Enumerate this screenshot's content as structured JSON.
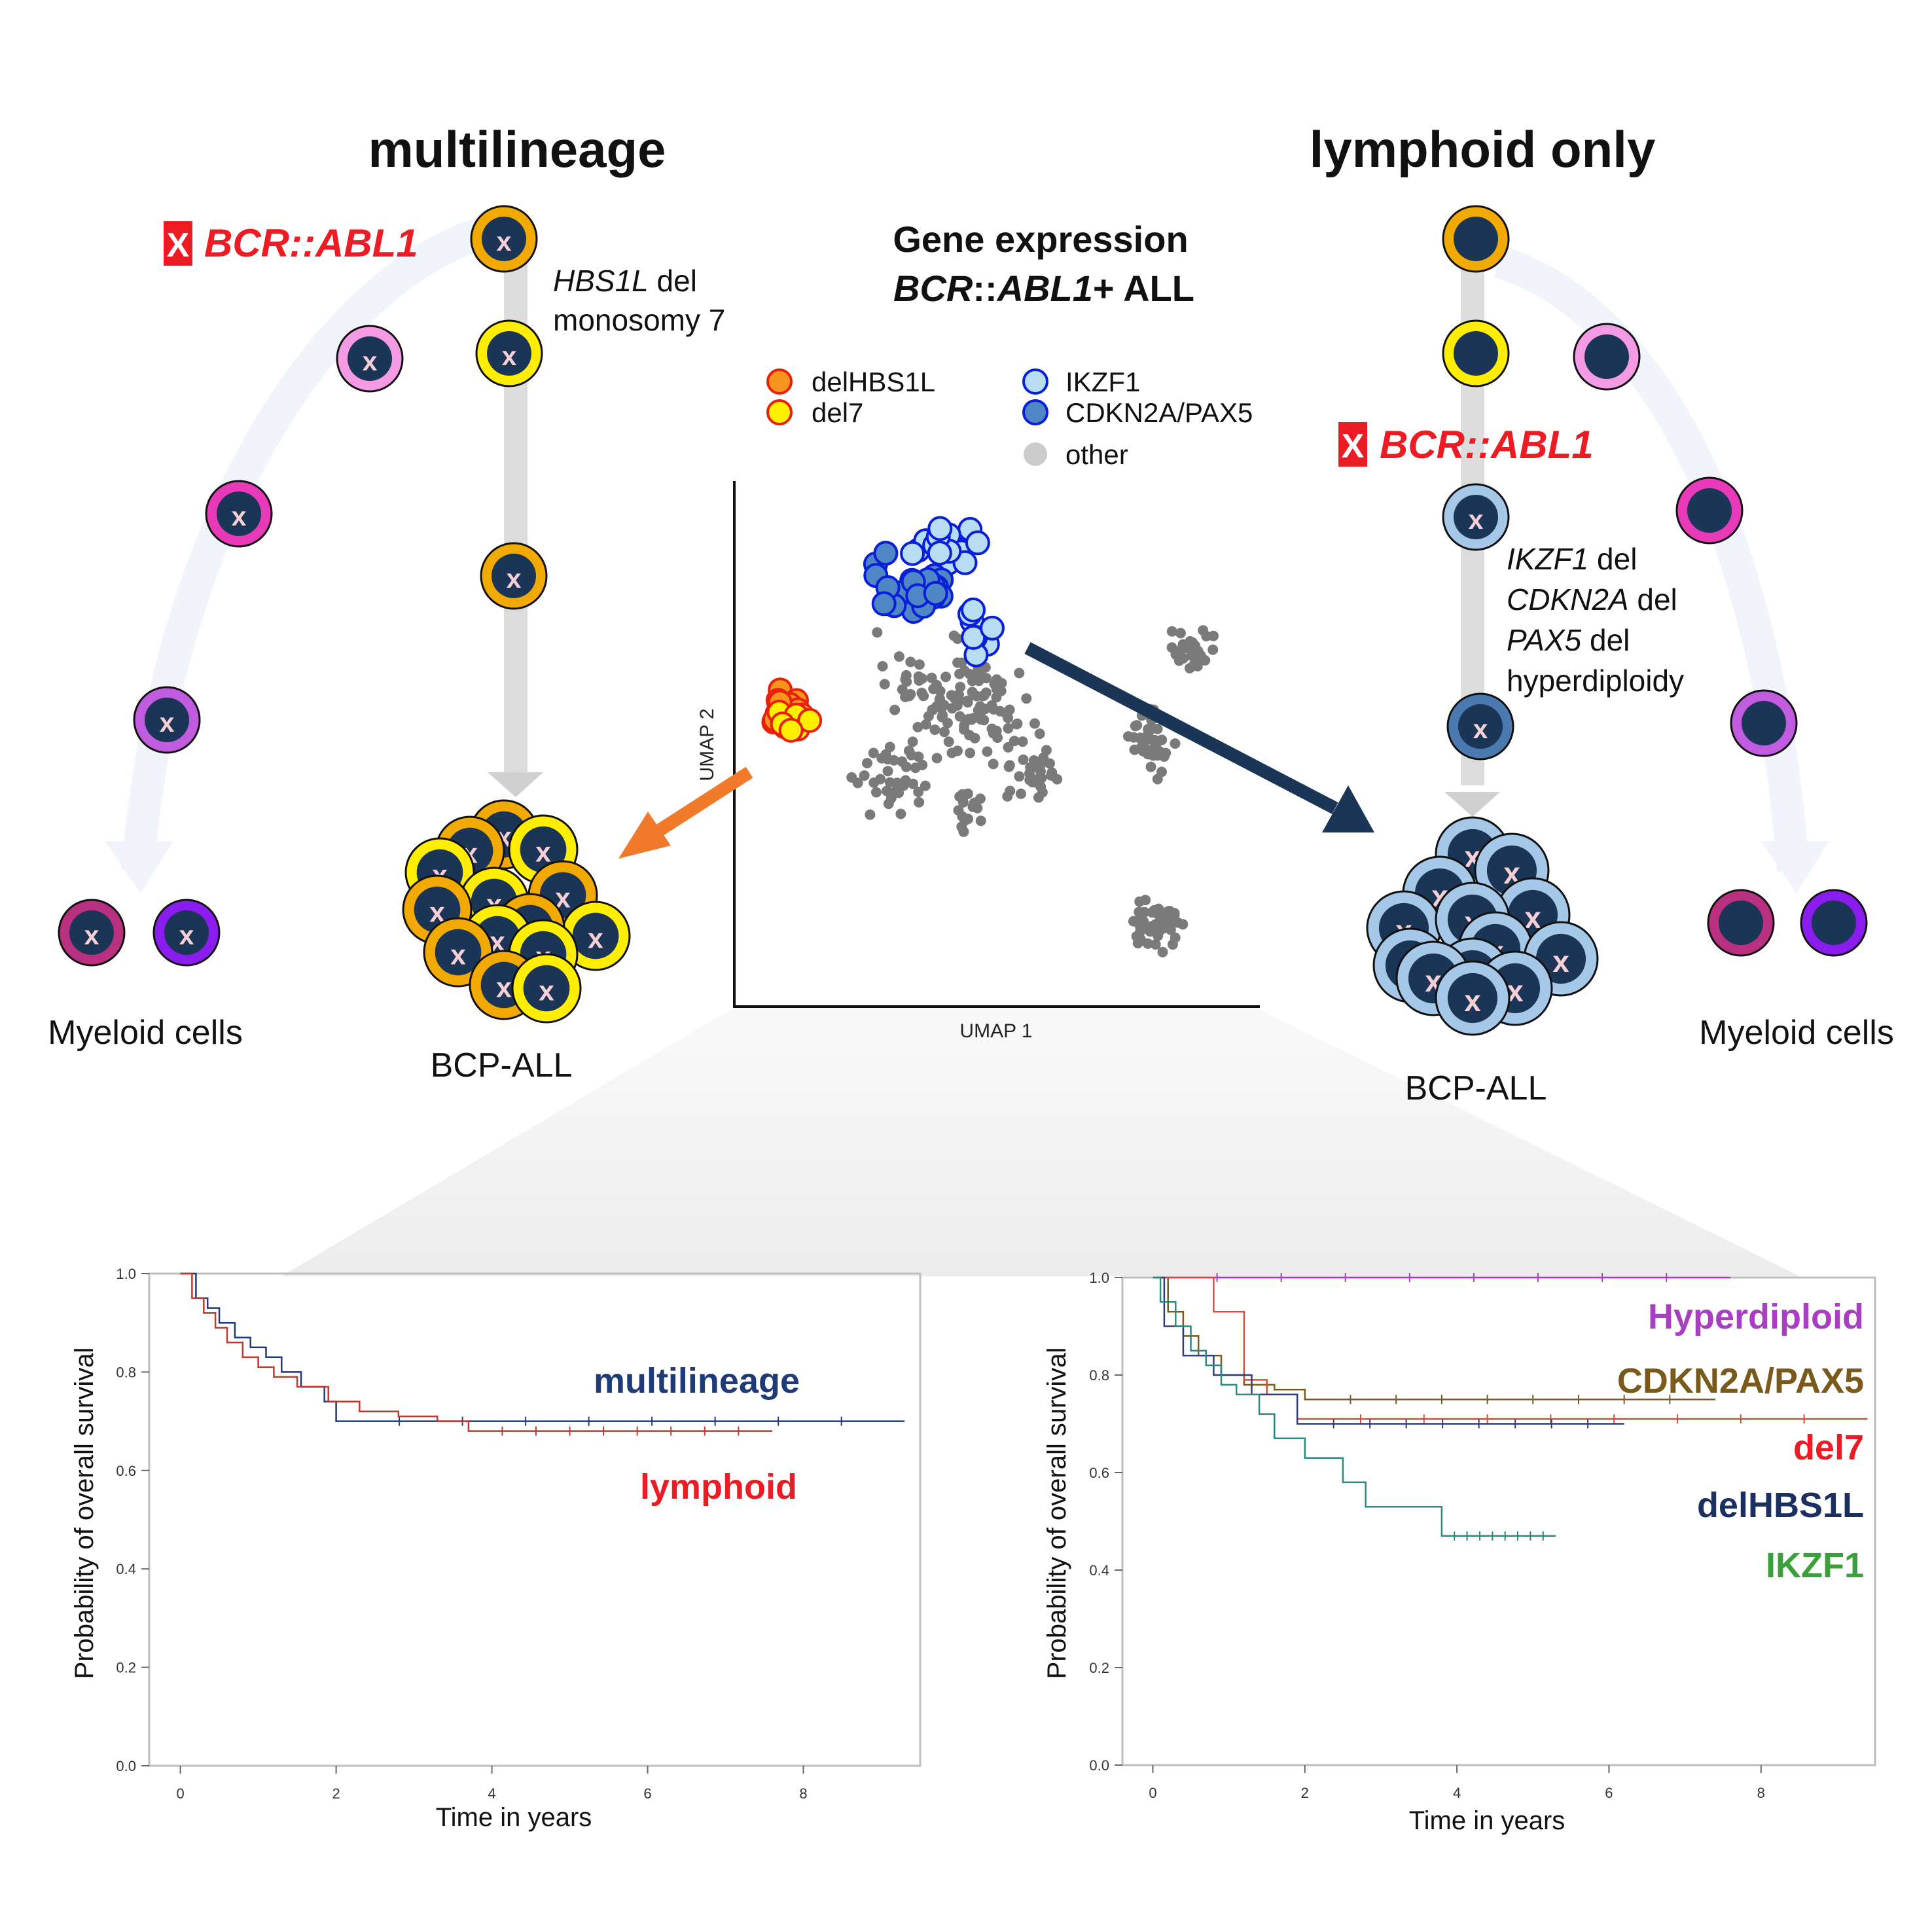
{
  "titles": {
    "left": "multilineage",
    "right": "lymphoid only",
    "center_line1": "Gene expression",
    "center_line2_ital": "BCR",
    "center_line2_mid": "::",
    "center_line2_ital2": "ABL1",
    "center_line2_end": "+ ALL"
  },
  "left_panel": {
    "fusion_label": "BCR::ABL1",
    "fusion_marker": "X",
    "mutation_gene": "HBS1L",
    "mutation_suffix": " del",
    "mutation_line2": "monosomy 7",
    "myeloid_label": "Myeloid cells",
    "bcp_label": "BCP-ALL",
    "cell_mark": "x"
  },
  "right_panel": {
    "fusion_label": "BCR::ABL1",
    "fusion_marker": "X",
    "lines": [
      {
        "gene": "IKZF1",
        "suffix": " del"
      },
      {
        "gene": "CDKN2A",
        "suffix": " del"
      },
      {
        "gene": "PAX5",
        "suffix": " del"
      },
      {
        "gene": "",
        "suffix": "hyperdiploidy"
      }
    ],
    "myeloid_label": "Myeloid cells",
    "bcp_label": "BCP-ALL",
    "cell_mark": "x"
  },
  "umap": {
    "xlabel": "UMAP 1",
    "ylabel": "UMAP 2",
    "legend": [
      {
        "label": "delHBS1L",
        "fill": "#f7941d",
        "stroke": "#e8200a"
      },
      {
        "label": "del7",
        "fill": "#ffef00",
        "stroke": "#e8200a"
      },
      {
        "label": "IKZF1",
        "fill": "#b8dcf2",
        "stroke": "#0a1fd8"
      },
      {
        "label": "CDKN2A/PAX5",
        "fill": "#4f86c6",
        "stroke": "#0a1fd8"
      },
      {
        "label": "other",
        "fill": "#cccccc",
        "stroke": "none"
      }
    ]
  },
  "colors": {
    "dark_cell": "#1b3556",
    "orange": "#f2a900",
    "yellow": "#ffee00",
    "pink_light": "#f59be6",
    "magenta": "#e83ab8",
    "purple": "#c15be0",
    "violet": "#8a1cf0",
    "plum": "#b8307f",
    "lightblue": "#a6c8e8",
    "steelblue": "#4a7ab0",
    "fusion_red": "#ed1c24",
    "arrow_orange": "#f07a2a",
    "arrow_navy": "#1b3556"
  },
  "chart_data": [
    {
      "type": "line",
      "title": "",
      "xlabel": "Time in years",
      "ylabel": "Probability of overall survival",
      "xlim": [
        -0.4,
        9.5
      ],
      "ylim": [
        0.0,
        1.0
      ],
      "xticks": [
        "0",
        "2",
        "4",
        "6",
        "8"
      ],
      "yticks": [
        "0.0",
        "0.2",
        "0.4",
        "0.6",
        "0.8",
        "1.0"
      ],
      "series": [
        {
          "name": "multilineage",
          "color": "#1f3a78",
          "x": [
            0,
            0.2,
            0.35,
            0.5,
            0.7,
            0.9,
            1.1,
            1.3,
            1.55,
            1.85,
            2.0,
            9.3
          ],
          "y": [
            1.0,
            0.95,
            0.93,
            0.9,
            0.87,
            0.85,
            0.83,
            0.8,
            0.77,
            0.74,
            0.7,
            0.7
          ]
        },
        {
          "name": "lymphoid",
          "color": "#c0392b",
          "x": [
            0,
            0.15,
            0.3,
            0.45,
            0.6,
            0.8,
            1.0,
            1.2,
            1.5,
            1.9,
            2.3,
            2.8,
            3.3,
            3.7,
            7.6
          ],
          "y": [
            1.0,
            0.95,
            0.92,
            0.89,
            0.86,
            0.83,
            0.81,
            0.79,
            0.77,
            0.74,
            0.72,
            0.71,
            0.7,
            0.68,
            0.68
          ]
        }
      ]
    },
    {
      "type": "line",
      "title": "",
      "xlabel": "Time in years",
      "ylabel": "Probability of overall survival",
      "xlim": [
        -0.4,
        9.5
      ],
      "ylim": [
        0.0,
        1.0
      ],
      "xticks": [
        "0",
        "2",
        "4",
        "6",
        "8"
      ],
      "yticks": [
        "0.0",
        "0.2",
        "0.4",
        "0.6",
        "0.8",
        "1.0"
      ],
      "series": [
        {
          "name": "Hyperdiploid",
          "color": "#a83ec0",
          "x": [
            0,
            7.6
          ],
          "y": [
            1.0,
            1.0
          ]
        },
        {
          "name": "CDKN2A/PAX5",
          "color": "#7a5a1a",
          "x": [
            0,
            0.2,
            0.4,
            0.6,
            0.9,
            1.2,
            1.6,
            2.0,
            7.4
          ],
          "y": [
            1.0,
            0.93,
            0.88,
            0.84,
            0.8,
            0.78,
            0.77,
            0.75,
            0.75
          ]
        },
        {
          "name": "del7",
          "color": "#d0503a",
          "x": [
            0,
            0.8,
            1.2,
            1.5,
            1.9,
            9.4
          ],
          "y": [
            1.0,
            0.93,
            0.79,
            0.76,
            0.71,
            0.71
          ]
        },
        {
          "name": "delHBS1L",
          "color": "#2b3f80",
          "x": [
            0,
            0.15,
            0.4,
            0.8,
            1.3,
            1.9,
            6.2
          ],
          "y": [
            1.0,
            0.9,
            0.84,
            0.8,
            0.76,
            0.7,
            0.7
          ]
        },
        {
          "name": "IKZF1",
          "color": "#2a8a80",
          "x": [
            0,
            0.1,
            0.3,
            0.5,
            0.7,
            0.9,
            1.1,
            1.4,
            1.6,
            2.0,
            2.5,
            2.8,
            3.6,
            3.8,
            5.3
          ],
          "y": [
            1.0,
            0.95,
            0.9,
            0.85,
            0.82,
            0.78,
            0.76,
            0.72,
            0.67,
            0.63,
            0.58,
            0.53,
            0.53,
            0.47,
            0.47
          ]
        }
      ]
    }
  ]
}
